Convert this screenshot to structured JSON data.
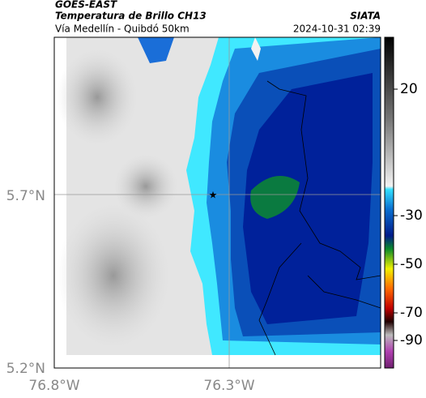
{
  "header": {
    "source": "GOES-EAST",
    "product": "Temperatura de Brillo CH13",
    "agency": "SIATA",
    "region": "Vía Medellín - Quibdó 50km",
    "timestamp": "2024-10-31 02:39"
  },
  "axes": {
    "lat_labels": [
      "5.7°N",
      "5.2°N"
    ],
    "lon_labels": [
      "76.8°W",
      "76.3°W"
    ]
  },
  "colorbar": {
    "ticks": [
      20,
      -30,
      -50,
      -70,
      -90
    ]
  },
  "marker": {
    "symbol": "★"
  }
}
